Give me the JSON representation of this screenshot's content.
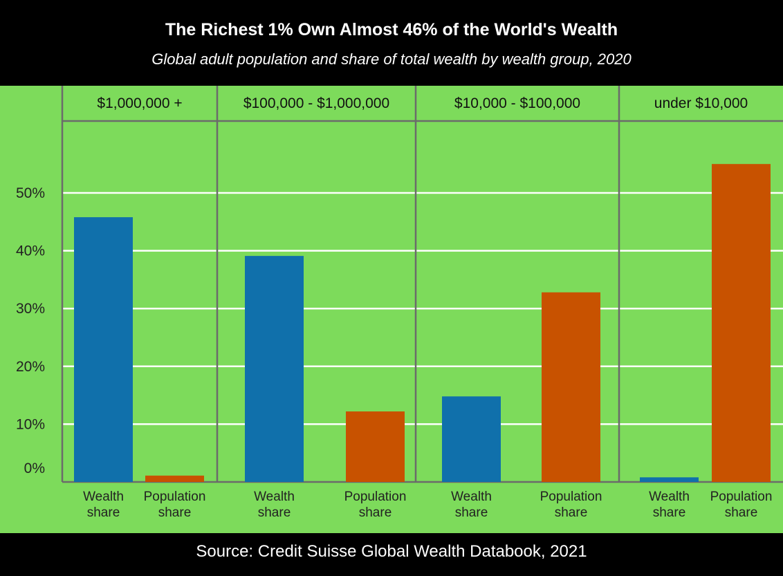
{
  "chart_data": {
    "type": "bar",
    "title": "The Richest 1% Own Almost 46% of the World's Wealth",
    "subtitle": "Global adult population and share of total wealth by wealth group, 2020",
    "source": "Source: Credit Suisse Global Wealth Databook, 2021",
    "groups": [
      "$1,000,000 +",
      "$100,000 - $1,000,000",
      "$10,000 - $100,000",
      "under $10,000"
    ],
    "bar_labels": [
      [
        "Wealth",
        "share"
      ],
      [
        "Population",
        "share"
      ]
    ],
    "series": [
      {
        "name": "Wealth share",
        "values": [
          45.8,
          39.1,
          14.8,
          0.8
        ]
      },
      {
        "name": "Population share",
        "values": [
          1.1,
          12.2,
          32.8,
          55.0
        ]
      }
    ],
    "ylim": [
      0,
      58
    ],
    "yticks": [
      0,
      10,
      20,
      30,
      40,
      50
    ],
    "ytick_labels": [
      "0%",
      "10%",
      "20%",
      "30%",
      "40%",
      "50%"
    ],
    "grid": true,
    "colors": {
      "background": "#7ddb5b",
      "wealth": "#1070ab",
      "population": "#c85200",
      "grid": "#ffffff",
      "divider": "#6b6b6b",
      "header": "#000000"
    }
  }
}
